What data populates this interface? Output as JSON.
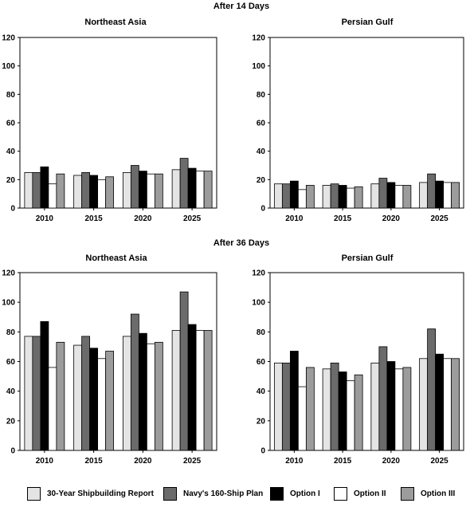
{
  "section_titles": [
    "After 14 Days",
    "After 36 Days"
  ],
  "y_ticks": [
    "0",
    "20",
    "40",
    "60",
    "80",
    "100",
    "120"
  ],
  "colors": {
    "30-Year Shipbuilding Report": "#e4e4e4",
    "Navy's 160-Ship Plan": "#6b6b6b",
    "Option I": "#000000",
    "Option II": "#ffffff",
    "Option III": "#9c9c9c"
  },
  "legend": [
    "30-Year Shipbuilding Report",
    "Navy's 160-Ship Plan",
    "Option I",
    "Option II",
    "Option III"
  ],
  "chart_data": [
    {
      "type": "bar",
      "section": "After 14 Days",
      "title": "Northeast Asia",
      "categories": [
        "2010",
        "2015",
        "2020",
        "2025"
      ],
      "ylim": [
        0,
        120
      ],
      "series": [
        {
          "name": "30-Year Shipbuilding Report",
          "values": [
            25,
            23,
            25,
            27
          ]
        },
        {
          "name": "Navy's 160-Ship Plan",
          "values": [
            25,
            25,
            30,
            35
          ]
        },
        {
          "name": "Option I",
          "values": [
            29,
            23,
            26,
            28
          ]
        },
        {
          "name": "Option II",
          "values": [
            17,
            20,
            24,
            26
          ]
        },
        {
          "name": "Option III",
          "values": [
            24,
            22,
            24,
            26
          ]
        }
      ]
    },
    {
      "type": "bar",
      "section": "After 14 Days",
      "title": "Persian Gulf",
      "categories": [
        "2010",
        "2015",
        "2020",
        "2025"
      ],
      "ylim": [
        0,
        120
      ],
      "series": [
        {
          "name": "30-Year Shipbuilding Report",
          "values": [
            17,
            16,
            17,
            18
          ]
        },
        {
          "name": "Navy's 160-Ship Plan",
          "values": [
            17,
            17,
            21,
            24
          ]
        },
        {
          "name": "Option I",
          "values": [
            19,
            16,
            18,
            19
          ]
        },
        {
          "name": "Option II",
          "values": [
            13,
            14,
            16,
            18
          ]
        },
        {
          "name": "Option III",
          "values": [
            16,
            15,
            16,
            18
          ]
        }
      ]
    },
    {
      "type": "bar",
      "section": "After 36 Days",
      "title": "Northeast Asia",
      "categories": [
        "2010",
        "2015",
        "2020",
        "2025"
      ],
      "ylim": [
        0,
        120
      ],
      "series": [
        {
          "name": "30-Year Shipbuilding Report",
          "values": [
            77,
            71,
            77,
            81
          ]
        },
        {
          "name": "Navy's 160-Ship Plan",
          "values": [
            77,
            77,
            92,
            107
          ]
        },
        {
          "name": "Option I",
          "values": [
            87,
            69,
            79,
            85
          ]
        },
        {
          "name": "Option II",
          "values": [
            56,
            62,
            72,
            81
          ]
        },
        {
          "name": "Option III",
          "values": [
            73,
            67,
            73,
            81
          ]
        }
      ]
    },
    {
      "type": "bar",
      "section": "After 36 Days",
      "title": "Persian Gulf",
      "categories": [
        "2010",
        "2015",
        "2020",
        "2025"
      ],
      "ylim": [
        0,
        120
      ],
      "series": [
        {
          "name": "30-Year Shipbuilding Report",
          "values": [
            59,
            55,
            59,
            62
          ]
        },
        {
          "name": "Navy's 160-Ship Plan",
          "values": [
            59,
            59,
            70,
            82
          ]
        },
        {
          "name": "Option I",
          "values": [
            67,
            53,
            60,
            65
          ]
        },
        {
          "name": "Option II",
          "values": [
            43,
            47,
            55,
            62
          ]
        },
        {
          "name": "Option III",
          "values": [
            56,
            51,
            56,
            62
          ]
        }
      ]
    }
  ]
}
